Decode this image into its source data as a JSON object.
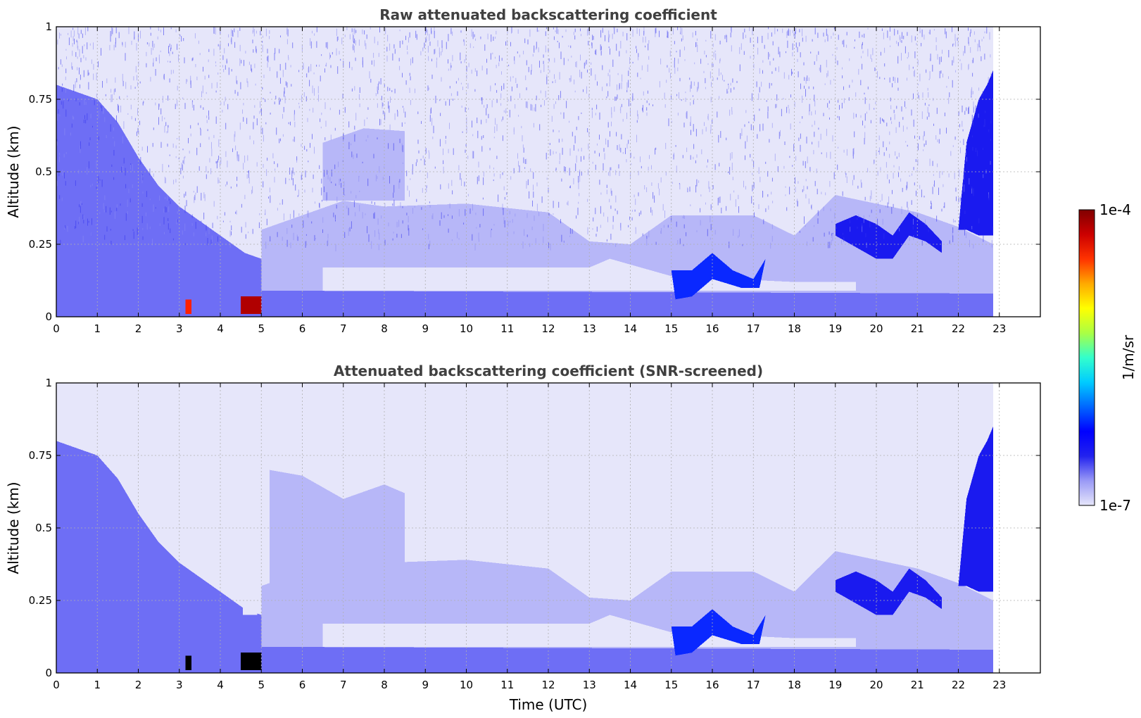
{
  "chart_data": [
    {
      "type": "heatmap",
      "title": "Raw attenuated backscattering coefficient",
      "xlabel": "",
      "ylabel": "Altitude (km)",
      "xlim": [
        0,
        24
      ],
      "ylim": [
        0,
        1
      ],
      "x_ticks": [
        "0",
        "1",
        "2",
        "3",
        "4",
        "5",
        "6",
        "7",
        "8",
        "9",
        "10",
        "11",
        "12",
        "13",
        "14",
        "15",
        "16",
        "17",
        "18",
        "19",
        "20",
        "21",
        "22",
        "23"
      ],
      "y_ticks": [
        "0",
        "0.25",
        "0.5",
        "0.75",
        "1"
      ],
      "grid": true,
      "data_end_time": 22.85,
      "noise_texture": true,
      "features": [
        {
          "label": "Dense aerosol decaying from surface (early morning)",
          "level": 3,
          "points": [
            [
              0,
              0.5
            ],
            [
              0.5,
              0.46
            ],
            [
              1,
              0.42
            ],
            [
              1.5,
              0.38
            ],
            [
              2,
              0.34
            ],
            [
              2.5,
              0.3
            ],
            [
              3,
              0.27
            ],
            [
              3.5,
              0.24
            ],
            [
              4,
              0.2
            ],
            [
              4.5,
              0.13
            ],
            [
              4.9,
              0.1
            ],
            [
              4.9,
              0
            ],
            [
              0,
              0
            ]
          ]
        },
        {
          "label": "Medium aerosol layer",
          "level": 2,
          "points": [
            [
              0,
              0.8
            ],
            [
              1,
              0.75
            ],
            [
              1.5,
              0.67
            ],
            [
              2,
              0.55
            ],
            [
              2.5,
              0.45
            ],
            [
              3,
              0.38
            ],
            [
              3.5,
              0.33
            ],
            [
              4,
              0.28
            ],
            [
              4.6,
              0.22
            ],
            [
              5,
              0.2
            ],
            [
              5.5,
              0.28
            ],
            [
              6,
              0.25
            ],
            [
              6.5,
              0.2
            ],
            [
              7,
              0.15
            ],
            [
              7,
              0
            ],
            [
              0,
              0
            ]
          ]
        },
        {
          "label": "Boundary layer (daytime)",
          "level": 1,
          "points": [
            [
              5,
              0.3
            ],
            [
              6,
              0.35
            ],
            [
              7,
              0.4
            ],
            [
              8,
              0.38
            ],
            [
              10,
              0.39
            ],
            [
              12,
              0.36
            ],
            [
              13,
              0.26
            ],
            [
              14,
              0.25
            ],
            [
              15,
              0.35
            ],
            [
              17,
              0.35
            ],
            [
              18,
              0.28
            ],
            [
              19,
              0.42
            ],
            [
              21,
              0.36
            ],
            [
              22,
              0.31
            ],
            [
              22.85,
              0.25
            ],
            [
              22.85,
              0
            ],
            [
              5,
              0
            ]
          ]
        },
        {
          "label": "Near-surface clear band",
          "level": 0,
          "points": [
            [
              6.5,
              0.17
            ],
            [
              13,
              0.17
            ],
            [
              13.5,
              0.2
            ],
            [
              15,
              0.14
            ],
            [
              18,
              0.12
            ],
            [
              19.5,
              0.12
            ],
            [
              19.5,
              0.09
            ],
            [
              6.5,
              0.09
            ]
          ]
        },
        {
          "label": "Surface layer",
          "level": 2,
          "points": [
            [
              5,
              0.09
            ],
            [
              22.85,
              0.08
            ],
            [
              22.85,
              0
            ],
            [
              5,
              0
            ]
          ]
        },
        {
          "label": "Upper diffuse aerosol 6-8.5 UTC",
          "level": 1,
          "points": [
            [
              6.5,
              0.6
            ],
            [
              7.5,
              0.65
            ],
            [
              8.5,
              0.64
            ],
            [
              8.5,
              0.4
            ],
            [
              6.5,
              0.4
            ]
          ]
        },
        {
          "label": "Elevated layer 15-17.3 UTC",
          "level": 4,
          "points": [
            [
              15,
              0.16
            ],
            [
              15.5,
              0.16
            ],
            [
              16,
              0.22
            ],
            [
              16.5,
              0.16
            ],
            [
              17,
              0.13
            ],
            [
              17.3,
              0.2
            ],
            [
              17.15,
              0.1
            ],
            [
              16.7,
              0.1
            ],
            [
              16,
              0.13
            ],
            [
              15.5,
              0.07
            ],
            [
              15.1,
              0.06
            ]
          ]
        },
        {
          "label": "Elevated layer 19-21.5 UTC",
          "level": 3,
          "points": [
            [
              19,
              0.32
            ],
            [
              19.5,
              0.35
            ],
            [
              20,
              0.32
            ],
            [
              20.4,
              0.28
            ],
            [
              20.8,
              0.36
            ],
            [
              21.2,
              0.32
            ],
            [
              21.6,
              0.26
            ],
            [
              21.6,
              0.22
            ],
            [
              21.2,
              0.26
            ],
            [
              20.8,
              0.28
            ],
            [
              20.4,
              0.2
            ],
            [
              20,
              0.2
            ],
            [
              19.5,
              0.24
            ],
            [
              19,
              0.28
            ]
          ]
        },
        {
          "label": "Elevated layer 22-22.85 UTC",
          "level": 3,
          "points": [
            [
              22,
              0.3
            ],
            [
              22.2,
              0.6
            ],
            [
              22.5,
              0.75
            ],
            [
              22.7,
              0.8
            ],
            [
              22.85,
              0.85
            ],
            [
              22.85,
              0.28
            ],
            [
              22.5,
              0.28
            ],
            [
              22.2,
              0.3
            ]
          ]
        },
        {
          "label": "Instrument gap ~4.6-4.9 UTC",
          "level": 0,
          "points": [
            [
              4.55,
              1
            ],
            [
              4.9,
              1
            ],
            [
              4.9,
              0.23
            ],
            [
              4.55,
              0.23
            ]
          ]
        },
        {
          "label": "Strong signal ~3.2 UTC",
          "level": 7,
          "points": [
            [
              3.15,
              0.06
            ],
            [
              3.3,
              0.06
            ],
            [
              3.3,
              0.01
            ],
            [
              3.15,
              0.01
            ]
          ]
        },
        {
          "label": "Strong signal ~4.5-5 UTC",
          "level": 8,
          "points": [
            [
              4.5,
              0.07
            ],
            [
              5,
              0.07
            ],
            [
              5,
              0.01
            ],
            [
              4.5,
              0.01
            ]
          ]
        }
      ]
    },
    {
      "type": "heatmap",
      "title": "Attenuated backscattering coefficient (SNR-screened)",
      "xlabel": "Time (UTC)",
      "ylabel": "Altitude (km)",
      "xlim": [
        0,
        24
      ],
      "ylim": [
        0,
        1
      ],
      "x_ticks": [
        "0",
        "1",
        "2",
        "3",
        "4",
        "5",
        "6",
        "7",
        "8",
        "9",
        "10",
        "11",
        "12",
        "13",
        "14",
        "15",
        "16",
        "17",
        "18",
        "19",
        "20",
        "21",
        "22",
        "23"
      ],
      "y_ticks": [
        "0",
        "0.25",
        "0.5",
        "0.75",
        "1"
      ],
      "grid": true,
      "data_end_time": 22.85,
      "noise_texture": false,
      "features": [
        {
          "label": "Dense aerosol decaying from surface (early morning)",
          "level": 3,
          "points": [
            [
              0,
              0.5
            ],
            [
              0.5,
              0.46
            ],
            [
              1,
              0.42
            ],
            [
              1.5,
              0.38
            ],
            [
              2,
              0.34
            ],
            [
              2.5,
              0.3
            ],
            [
              3,
              0.27
            ],
            [
              3.5,
              0.24
            ],
            [
              4,
              0.2
            ],
            [
              4.5,
              0.13
            ],
            [
              4.9,
              0.1
            ],
            [
              4.9,
              0
            ],
            [
              0,
              0
            ]
          ]
        },
        {
          "label": "Medium aerosol layer",
          "level": 2,
          "points": [
            [
              0,
              0.8
            ],
            [
              1,
              0.75
            ],
            [
              1.5,
              0.67
            ],
            [
              2,
              0.55
            ],
            [
              2.5,
              0.45
            ],
            [
              3,
              0.38
            ],
            [
              3.5,
              0.33
            ],
            [
              4,
              0.28
            ],
            [
              4.6,
              0.22
            ],
            [
              5,
              0.2
            ],
            [
              5.5,
              0.28
            ],
            [
              6,
              0.25
            ],
            [
              6.5,
              0.2
            ],
            [
              7,
              0.15
            ],
            [
              7,
              0
            ],
            [
              0,
              0
            ]
          ]
        },
        {
          "label": "Boundary layer (daytime)",
          "level": 1,
          "points": [
            [
              5,
              0.3
            ],
            [
              6,
              0.35
            ],
            [
              7,
              0.4
            ],
            [
              8,
              0.38
            ],
            [
              10,
              0.39
            ],
            [
              12,
              0.36
            ],
            [
              13,
              0.26
            ],
            [
              14,
              0.25
            ],
            [
              15,
              0.35
            ],
            [
              17,
              0.35
            ],
            [
              18,
              0.28
            ],
            [
              19,
              0.42
            ],
            [
              21,
              0.36
            ],
            [
              22,
              0.31
            ],
            [
              22.85,
              0.25
            ],
            [
              22.85,
              0
            ],
            [
              5,
              0
            ]
          ]
        },
        {
          "label": "Upper aerosol 5-8.5 UTC",
          "level": 1,
          "points": [
            [
              5.2,
              0.7
            ],
            [
              6,
              0.68
            ],
            [
              7,
              0.6
            ],
            [
              8,
              0.65
            ],
            [
              8.5,
              0.62
            ],
            [
              8.5,
              0.38
            ],
            [
              5.2,
              0.3
            ]
          ]
        },
        {
          "label": "Near-surface clear band",
          "level": 0,
          "points": [
            [
              6.5,
              0.17
            ],
            [
              13,
              0.17
            ],
            [
              13.5,
              0.2
            ],
            [
              15,
              0.14
            ],
            [
              18,
              0.12
            ],
            [
              19.5,
              0.12
            ],
            [
              19.5,
              0.09
            ],
            [
              6.5,
              0.09
            ]
          ]
        },
        {
          "label": "Surface layer",
          "level": 2,
          "points": [
            [
              5,
              0.09
            ],
            [
              22.85,
              0.08
            ],
            [
              22.85,
              0
            ],
            [
              5,
              0
            ]
          ]
        },
        {
          "label": "Elevated layer 15-17.3 UTC",
          "level": 4,
          "points": [
            [
              15,
              0.16
            ],
            [
              15.5,
              0.16
            ],
            [
              16,
              0.22
            ],
            [
              16.5,
              0.16
            ],
            [
              17,
              0.13
            ],
            [
              17.3,
              0.2
            ],
            [
              17.15,
              0.1
            ],
            [
              16.7,
              0.1
            ],
            [
              16,
              0.13
            ],
            [
              15.5,
              0.07
            ],
            [
              15.1,
              0.06
            ]
          ]
        },
        {
          "label": "Elevated layer 19-21.5 UTC",
          "level": 3,
          "points": [
            [
              19,
              0.32
            ],
            [
              19.5,
              0.35
            ],
            [
              20,
              0.32
            ],
            [
              20.4,
              0.28
            ],
            [
              20.8,
              0.36
            ],
            [
              21.2,
              0.32
            ],
            [
              21.6,
              0.26
            ],
            [
              21.6,
              0.22
            ],
            [
              21.2,
              0.26
            ],
            [
              20.8,
              0.28
            ],
            [
              20.4,
              0.2
            ],
            [
              20,
              0.2
            ],
            [
              19.5,
              0.24
            ],
            [
              19,
              0.28
            ]
          ]
        },
        {
          "label": "Elevated layer 22-22.85 UTC",
          "level": 3,
          "points": [
            [
              22,
              0.3
            ],
            [
              22.2,
              0.6
            ],
            [
              22.5,
              0.75
            ],
            [
              22.7,
              0.8
            ],
            [
              22.85,
              0.85
            ],
            [
              22.85,
              0.28
            ],
            [
              22.5,
              0.28
            ],
            [
              22.2,
              0.3
            ]
          ]
        },
        {
          "label": "Instrument gap ~4.6-4.9 UTC",
          "level": 0,
          "points": [
            [
              4.55,
              1
            ],
            [
              4.9,
              1
            ],
            [
              4.9,
              0.2
            ],
            [
              4.55,
              0.2
            ]
          ]
        },
        {
          "label": "Screened-out strong signal ~3.2 UTC",
          "level": 9,
          "points": [
            [
              3.15,
              0.06
            ],
            [
              3.3,
              0.06
            ],
            [
              3.3,
              0.01
            ],
            [
              3.15,
              0.01
            ]
          ]
        },
        {
          "label": "Screened-out strong signal ~4.5-5 UTC",
          "level": 9,
          "points": [
            [
              4.5,
              0.07
            ],
            [
              5,
              0.07
            ],
            [
              5,
              0.01
            ],
            [
              4.5,
              0.01
            ]
          ]
        }
      ]
    }
  ],
  "palette": [
    "#e6e6fa",
    "#b7b7f8",
    "#6e6ef5",
    "#1a1aef",
    "#0a28ff",
    "#00c8ff",
    "#ffd000",
    "#ff2000",
    "#b00000",
    "#000000"
  ],
  "colorbar": {
    "label": "1/m/sr",
    "max_label": "1e-4",
    "min_label": "1e-7",
    "stops": [
      "#e6e6fa",
      "#9a9af6",
      "#2222ee",
      "#0000ff",
      "#0066ff",
      "#00ccff",
      "#33ffcc",
      "#aaff44",
      "#ffff00",
      "#ffaa00",
      "#ff3300",
      "#cc0000",
      "#800000"
    ]
  }
}
